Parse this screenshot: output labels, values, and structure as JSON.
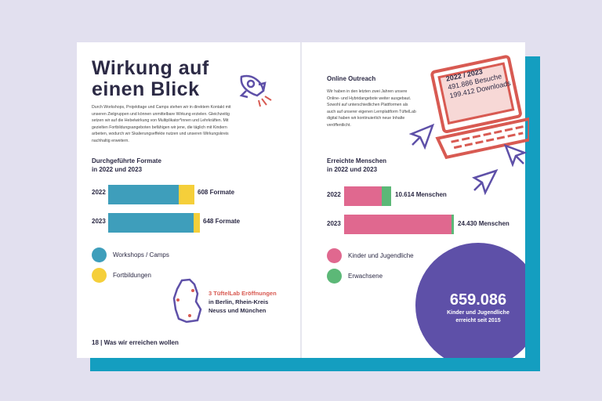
{
  "colors": {
    "teal": "#3e9ebb",
    "yellow": "#f5cf3a",
    "pink": "#e0688f",
    "green": "#5cb877",
    "red": "#d85a52",
    "purple": "#5e50a8"
  },
  "left": {
    "title": "Wirkung auf einen Blick",
    "title_l1": "Wirkung auf",
    "title_l2": "einen Blick",
    "intro": "Durch Workshops, Projekttage und Camps stehen wir in direktem Kontakt mit unseren Zielgruppen und können unmittelbare Wirkung erzielen. Gleichzeitig setzen wir auf die Hebelwirkung von Multiplikator*innen und Lehrkräften. Mit gezielten Fortbildungsangeboten befähigen wir jene, die täglich mit Kindern arbeiten, wodurch wir Skalierungseffekte nutzen und unseren Wirkungskreis nachhaltig erweitern.",
    "chart_title_l1": "Durchgeführte Formate",
    "chart_title_l2": "in 2022 und 2023",
    "rows": [
      {
        "year": "2022",
        "label": "608 Formate",
        "teal": 0.82,
        "yellow": 0.18,
        "total": 608
      },
      {
        "year": "2023",
        "label": "648 Formate",
        "teal": 0.93,
        "yellow": 0.07,
        "total": 648
      }
    ],
    "legend": [
      "Workshops / Camps",
      "Fortbildungen"
    ],
    "map_highlight": "3 TüftelLab Eröffnungen",
    "map_text_l1": "in Berlin, Rhein-Kreis",
    "map_text_l2": "Neuss und München",
    "footer": "18 | Was wir erreichen wollen"
  },
  "right": {
    "outreach_title": "Online Outreach",
    "outreach_text": "Wir haben in den letzten zwei Jahren unsere Online- und Hybridangebote weiter ausgebaut. Sowohl auf unterschiedlichen Plattformen als auch auf unserer eigenen Lernplattform TüftelLab digital haben wir kontinuierlich neue Inhalte veröffentlicht.",
    "screen_l1": "2022 / 2023",
    "screen_l2": "491.886 Besuche",
    "screen_l3": "199.412 Downloads",
    "chart_title_l1": "Erreichte Menschen",
    "chart_title_l2": "in 2022 und 2023",
    "rows": [
      {
        "year": "2022",
        "label": "10.614 Menschen",
        "pink": 0.8,
        "green": 0.2,
        "total": 10614
      },
      {
        "year": "2023",
        "label": "24.430 Menschen",
        "pink": 0.98,
        "green": 0.02,
        "total": 24430
      }
    ],
    "legend": [
      "Kinder und Jugendliche",
      "Erwachsene"
    ],
    "big_number": "659.086",
    "big_l1": "Kinder und Jugendliche",
    "big_l2": "erreicht seit 2015"
  }
}
